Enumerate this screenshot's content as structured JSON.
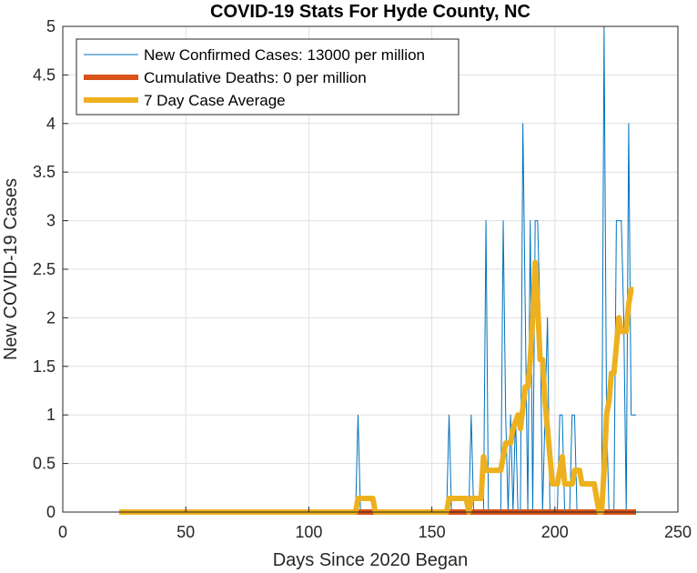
{
  "chart_data": {
    "type": "line",
    "title": "COVID-19 Stats For Hyde County, NC",
    "xlabel": "Days Since 2020 Began",
    "ylabel": "New COVID-19 Cases",
    "xlim": [
      0,
      250
    ],
    "ylim": [
      0,
      5
    ],
    "xticks": [
      0,
      50,
      100,
      150,
      200,
      250
    ],
    "xtick_labels": [
      "0",
      "50",
      "100",
      "150",
      "200",
      "250"
    ],
    "yticks": [
      0,
      0.5,
      1,
      1.5,
      2,
      2.5,
      3,
      3.5,
      4,
      4.5,
      5
    ],
    "ytick_labels": [
      "0",
      "0.5",
      "1",
      "1.5",
      "2",
      "2.5",
      "3",
      "3.5",
      "4",
      "4.5",
      "5"
    ],
    "grid": true,
    "legend_position": "top-left",
    "series": [
      {
        "name": "New Confirmed Cases: 13000 per million",
        "color": "#0072BD",
        "width": 1,
        "x": [
          23,
          119,
          120,
          121,
          156,
          157,
          158,
          165,
          166,
          167,
          171,
          172,
          173,
          178,
          179,
          180,
          181,
          182,
          183,
          184,
          185,
          186,
          187,
          188,
          189,
          190,
          191,
          192,
          193,
          194,
          195,
          196,
          197,
          198,
          199,
          200,
          201,
          202,
          203,
          204,
          205,
          206,
          207,
          208,
          209,
          210,
          211,
          212,
          213,
          217,
          218,
          219,
          220,
          221,
          222,
          223,
          224,
          225,
          226,
          227,
          228,
          229,
          230,
          231,
          232,
          233
        ],
        "y": [
          0,
          0,
          1,
          0,
          0,
          1,
          0,
          0,
          1,
          0,
          0,
          3,
          0,
          0,
          3,
          1,
          0,
          1,
          0,
          1,
          0,
          0,
          4,
          2,
          0,
          3,
          0,
          3,
          3,
          2,
          0,
          1,
          2,
          0,
          0,
          0,
          0,
          1,
          1,
          0,
          0,
          0,
          1,
          1,
          0,
          0,
          0,
          0,
          0,
          0,
          0,
          0,
          5,
          1,
          0,
          0,
          0,
          3,
          3,
          3,
          2,
          0,
          4,
          1,
          1,
          1
        ]
      },
      {
        "name": "Cumulative Deaths: 0 per million",
        "color": "#D95319",
        "width": 6,
        "x": [
          23,
          233
        ],
        "y": [
          0,
          0
        ]
      },
      {
        "name": "7 Day Case Average",
        "color": "#EDB120",
        "width": 6,
        "x": [
          23,
          119,
          120,
          121,
          126,
          127,
          156,
          157,
          158,
          164,
          165,
          166,
          170,
          171,
          172,
          173,
          178,
          179,
          180,
          182,
          183,
          185,
          186,
          188,
          189,
          190,
          191,
          192,
          193,
          194,
          195,
          196,
          197,
          198,
          199,
          200,
          201,
          202,
          203,
          204,
          205,
          206,
          207,
          208,
          209,
          210,
          211,
          212,
          213,
          216,
          217,
          218,
          219,
          220,
          221,
          222,
          223,
          224,
          225,
          226,
          227,
          228,
          229,
          230,
          231,
          232
        ],
        "y": [
          0,
          0,
          0.14,
          0.14,
          0.14,
          0,
          0,
          0.14,
          0.14,
          0.14,
          0,
          0.14,
          0.14,
          0.57,
          0.43,
          0.43,
          0.43,
          0.57,
          0.71,
          0.71,
          0.86,
          1,
          0.86,
          1.29,
          1.29,
          1.57,
          2,
          2.57,
          2.14,
          1.57,
          1.57,
          1.14,
          0.86,
          0.57,
          0.29,
          0.29,
          0.29,
          0.43,
          0.57,
          0.29,
          0.29,
          0.29,
          0.29,
          0.43,
          0.43,
          0.43,
          0.29,
          0.29,
          0.29,
          0.29,
          0.14,
          0,
          0,
          0.43,
          1,
          1.14,
          1.43,
          1.43,
          1.71,
          2,
          1.86,
          1.86,
          1.86,
          2.14,
          2.29,
          2.29
        ]
      }
    ]
  }
}
